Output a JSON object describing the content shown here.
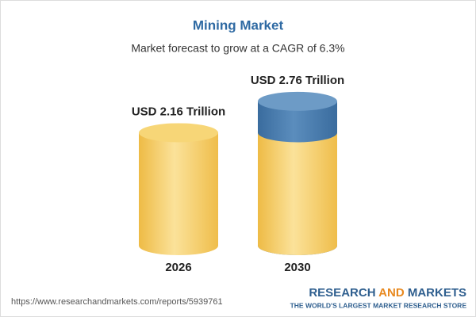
{
  "chart_data": {
    "type": "cylinder",
    "title": "Mining Market",
    "subtitle": "Market forecast to grow at a CAGR of 6.3%",
    "categories": [
      "2026",
      "2030"
    ],
    "values": [
      2.16,
      2.76
    ],
    "value_labels": [
      "USD 2.16 Trillion",
      "USD 2.76 Trillion"
    ],
    "color": "#f3c558",
    "growth_color": "#3f74a8"
  },
  "footer": {
    "url": "https://www.researchandmarkets.com/reports/5939761",
    "brand": [
      "RESEARCH",
      "AND",
      "MARKETS"
    ],
    "tagline": "THE WORLD'S LARGEST MARKET RESEARCH STORE"
  }
}
